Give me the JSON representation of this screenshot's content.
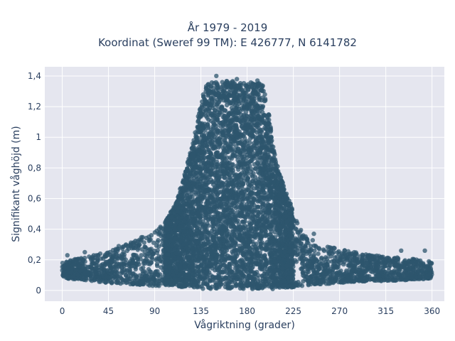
{
  "chart_data": {
    "type": "scatter",
    "title_lines": [
      "År 1979 - 2019",
      "Koordinat (Sweref 99 TM): E 426777, N 6141782"
    ],
    "xlabel": "Vågriktning (grader)",
    "ylabel": "Signifikant våghöjd (m)",
    "xlim": [
      -17,
      372
    ],
    "ylim": [
      -0.07,
      1.46
    ],
    "xticks": [
      0,
      45,
      90,
      135,
      180,
      225,
      270,
      315,
      360
    ],
    "xtick_labels": [
      "0",
      "45",
      "90",
      "135",
      "180",
      "225",
      "270",
      "315",
      "360"
    ],
    "yticks": [
      0,
      0.2,
      0.4,
      0.6,
      0.8,
      1.0,
      1.2,
      1.4
    ],
    "ytick_labels": [
      "0",
      "0,2",
      "0,4",
      "0,6",
      "0,8",
      "1",
      "1,2",
      "1,4"
    ],
    "grid": true,
    "marker_color": "#2e566e",
    "background_color": "#e5e6ef",
    "envelope": {
      "x": [
        0,
        20,
        45,
        70,
        90,
        100,
        110,
        120,
        128,
        133,
        138,
        142,
        150,
        165,
        180,
        195,
        200,
        205,
        210,
        218,
        225,
        235,
        250,
        270,
        290,
        315,
        340,
        360
      ],
      "y_max": [
        0.18,
        0.22,
        0.25,
        0.33,
        0.38,
        0.45,
        0.56,
        0.78,
        0.99,
        1.16,
        1.3,
        1.36,
        1.36,
        1.37,
        1.36,
        1.35,
        1.23,
        0.95,
        0.8,
        0.64,
        0.52,
        0.38,
        0.3,
        0.28,
        0.24,
        0.22,
        0.21,
        0.18
      ],
      "y_min": [
        0.08,
        0.07,
        0.05,
        0.04,
        0.03,
        0.03,
        0.03,
        0.02,
        0.02,
        0.02,
        0.01,
        0.01,
        0.01,
        0.01,
        0.01,
        0.01,
        0.01,
        0.01,
        0.02,
        0.02,
        0.02,
        0.03,
        0.04,
        0.05,
        0.06,
        0.06,
        0.07,
        0.08
      ]
    },
    "sample_points": [
      {
        "x": 2,
        "y": 0.12
      },
      {
        "x": 5,
        "y": 0.23
      },
      {
        "x": 22,
        "y": 0.25
      },
      {
        "x": 28,
        "y": 0.15
      },
      {
        "x": 37,
        "y": 0.24
      },
      {
        "x": 50,
        "y": 0.19
      },
      {
        "x": 55,
        "y": 0.29
      },
      {
        "x": 70,
        "y": 0.3
      },
      {
        "x": 85,
        "y": 0.33
      },
      {
        "x": 95,
        "y": 0.38
      },
      {
        "x": 150,
        "y": 1.4
      },
      {
        "x": 170,
        "y": 1.38
      },
      {
        "x": 190,
        "y": 1.37
      },
      {
        "x": 245,
        "y": 0.37
      },
      {
        "x": 262,
        "y": 0.27
      },
      {
        "x": 300,
        "y": 0.22
      },
      {
        "x": 330,
        "y": 0.26
      },
      {
        "x": 353,
        "y": 0.26
      },
      {
        "x": 357,
        "y": 0.19
      }
    ]
  }
}
